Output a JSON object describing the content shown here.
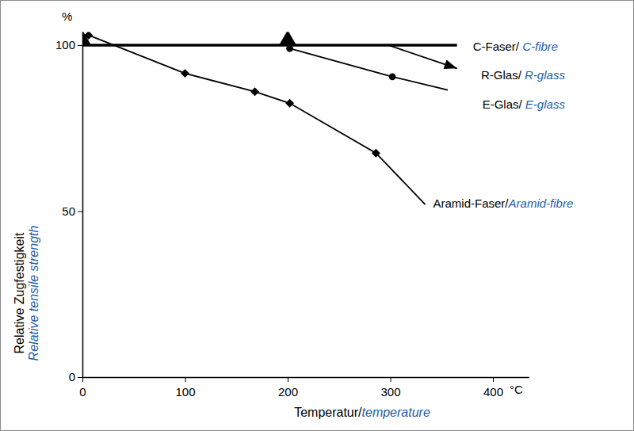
{
  "chart_data": {
    "type": "line",
    "xlabel": "Temperatur/temperature",
    "ylabel": [
      "Relative Zugfestigkeit",
      "Relative tensile strength"
    ],
    "x_unit": "°C",
    "y_unit": "%",
    "xlim": [
      0,
      435
    ],
    "ylim": [
      0,
      104
    ],
    "xticks": [
      0,
      100,
      200,
      300,
      400
    ],
    "yticks": [
      0,
      50,
      100
    ],
    "series": [
      {
        "name": "C-Faser/ C-fibre",
        "color": "#000000",
        "marker": "triangle",
        "x": [
          0,
          200,
          365
        ],
        "values": [
          100,
          100,
          100
        ]
      },
      {
        "name": "R-Glas/ R-glass",
        "color": "#000000",
        "marker": "circle",
        "x": [
          202,
          302,
          356
        ],
        "values": [
          99,
          90.5,
          86.5
        ]
      },
      {
        "name": "E-Glas/ E-glass",
        "color": "#000000",
        "marker": "arrow",
        "x": [
          298,
          365
        ],
        "values": [
          100,
          93
        ]
      },
      {
        "name": "Aramid-Faser/Aramid-fibre",
        "color": "#000000",
        "marker": "diamond",
        "x": [
          6,
          100,
          168,
          202,
          286,
          334
        ],
        "values": [
          103,
          91.5,
          86,
          82.5,
          67.5,
          52
        ]
      }
    ]
  }
}
